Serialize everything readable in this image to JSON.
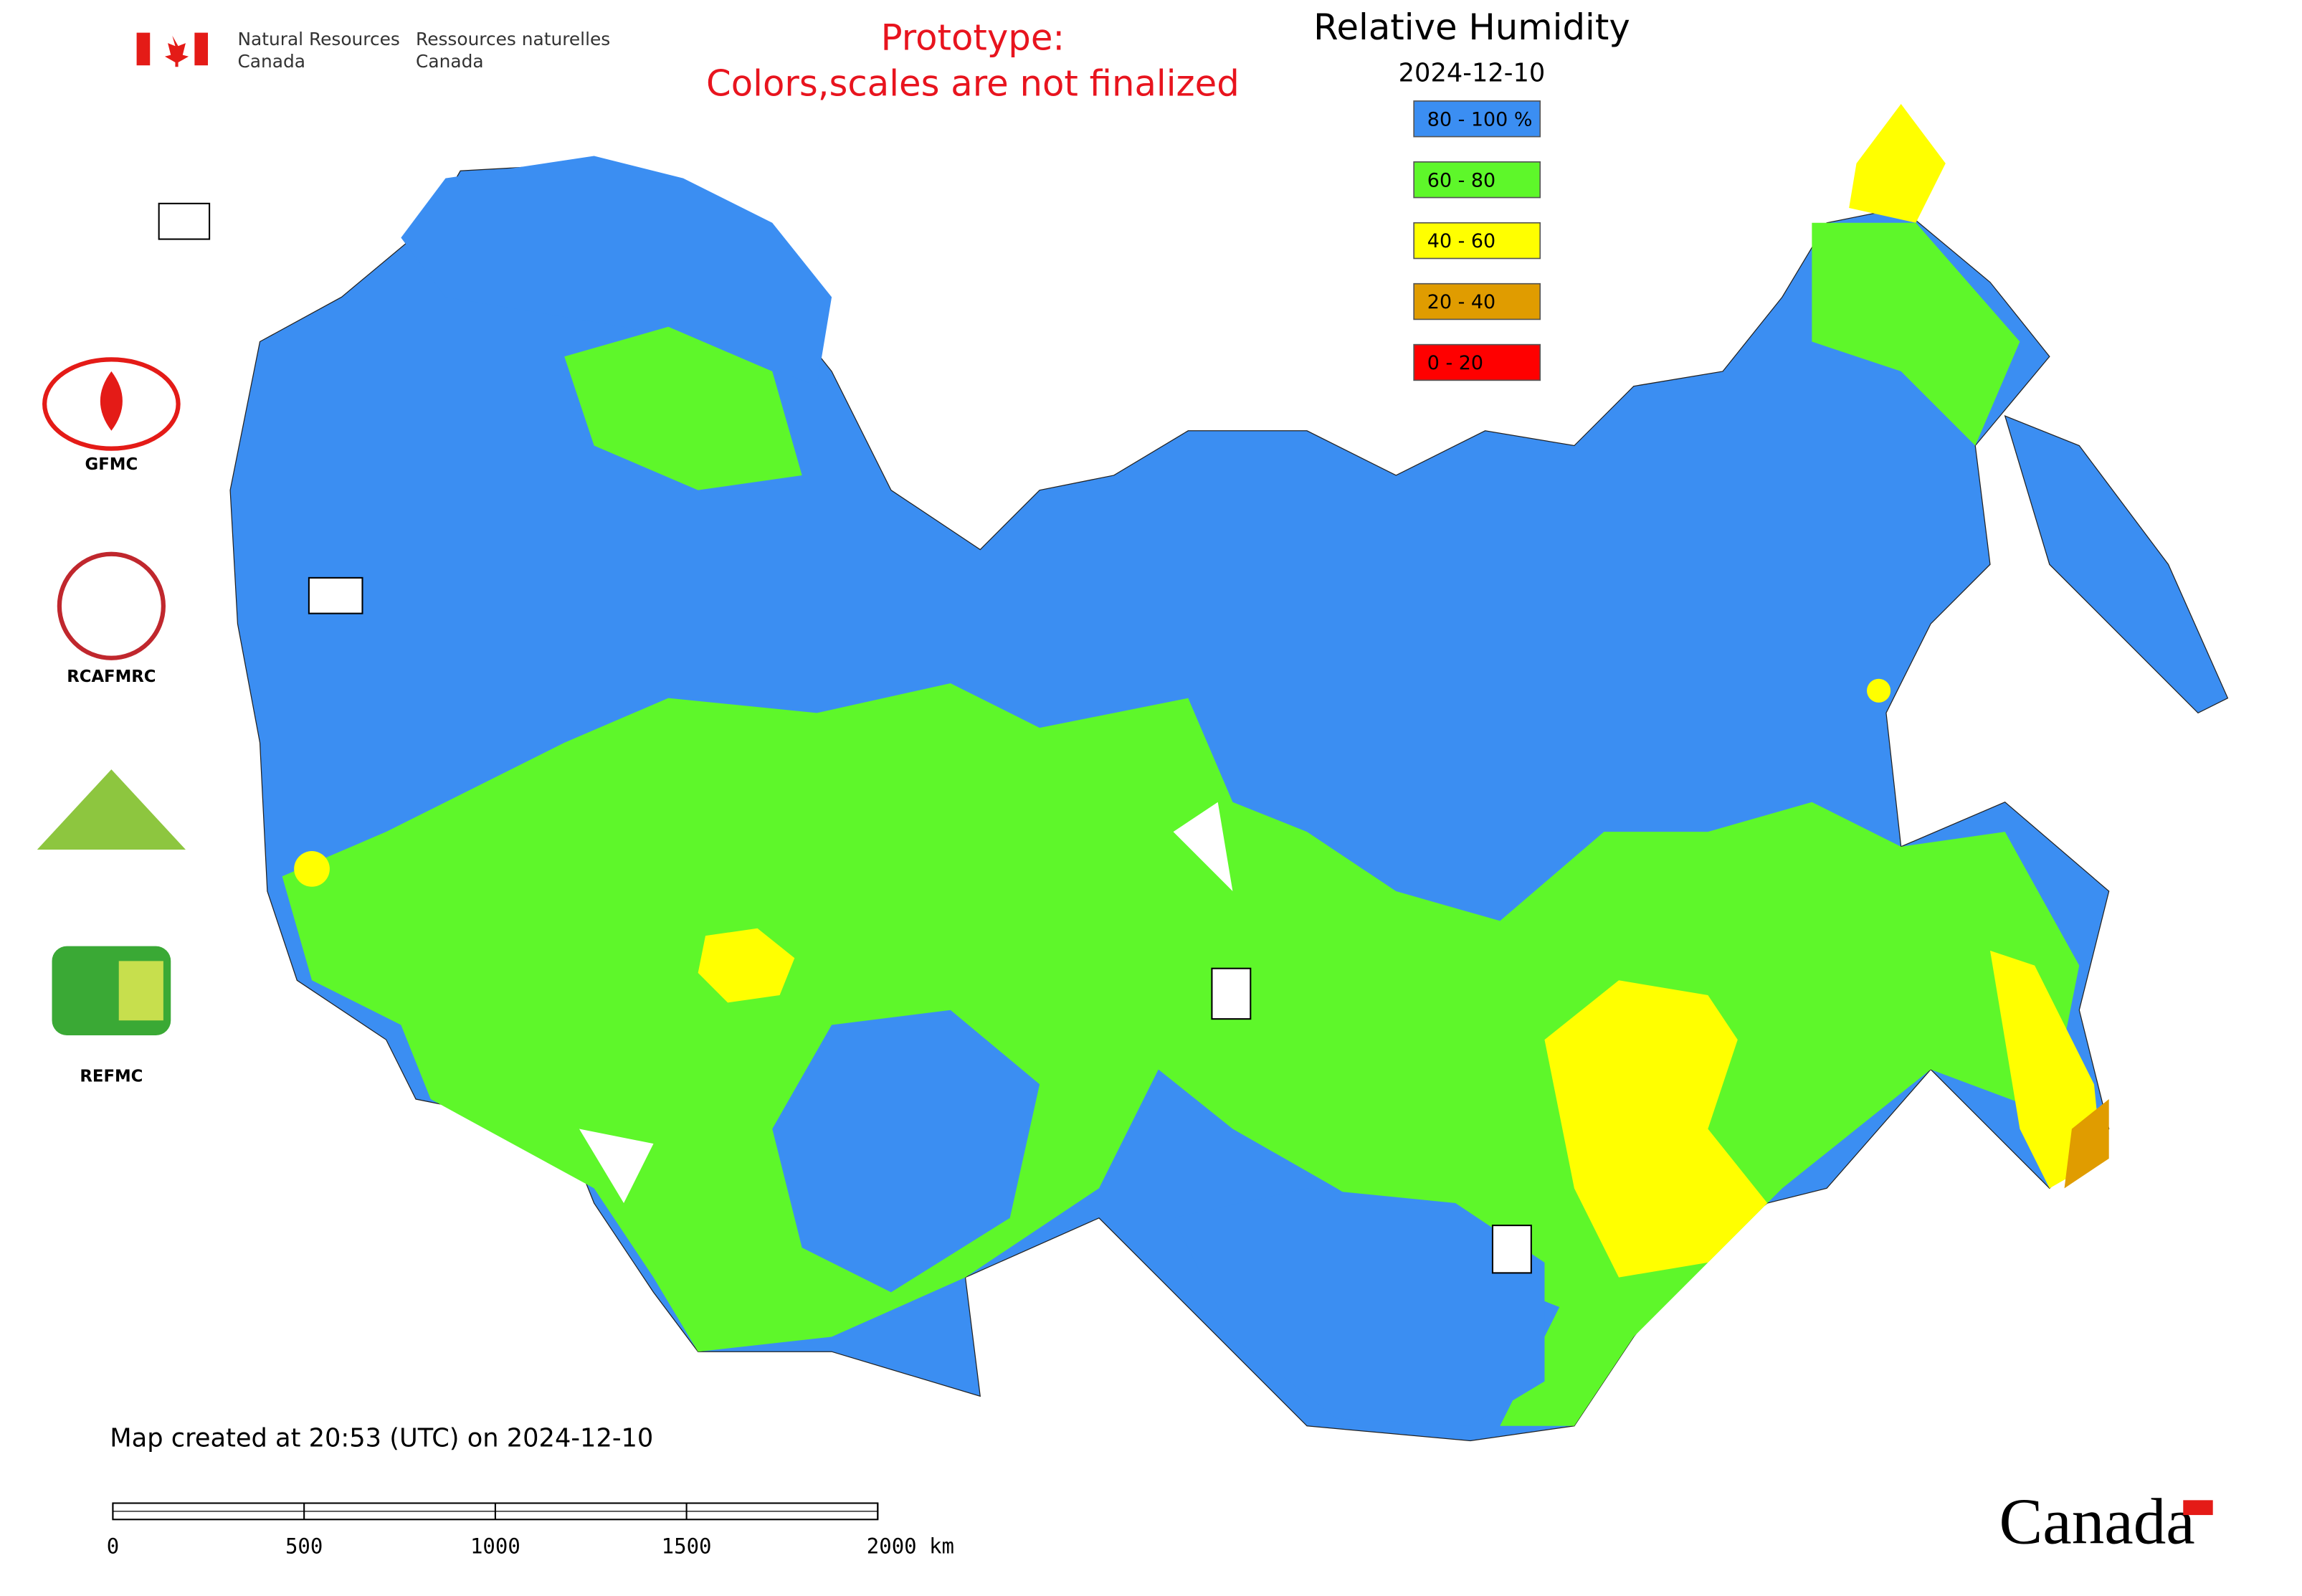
{
  "header": {
    "agency_en": [
      "Natural Resources",
      "Canada"
    ],
    "agency_fr": [
      "Ressources naturelles",
      "Canada"
    ]
  },
  "notice": [
    "Prototype:",
    "Colors,scales are not finalized"
  ],
  "title": "Relative Humidity",
  "date": "2024-12-10",
  "legend": [
    {
      "label": "80 - 100 %",
      "color": "#3b8ef2"
    },
    {
      "label": "60 - 80",
      "color": "#5ef72a"
    },
    {
      "label": "40 - 60",
      "color": "#ffff00"
    },
    {
      "label": "20 - 40",
      "color": "#e09c00"
    },
    {
      "label": "0 - 20",
      "color": "#ff0000"
    }
  ],
  "logos": [
    "GFMC",
    "RCAFMRC",
    "REFMC"
  ],
  "footer": "Map created at 20:53 (UTC) on 2024-12-10",
  "scale_bar": [
    "0",
    "500",
    "1000",
    "1500",
    "2000 km"
  ],
  "wordmark": "Canada"
}
